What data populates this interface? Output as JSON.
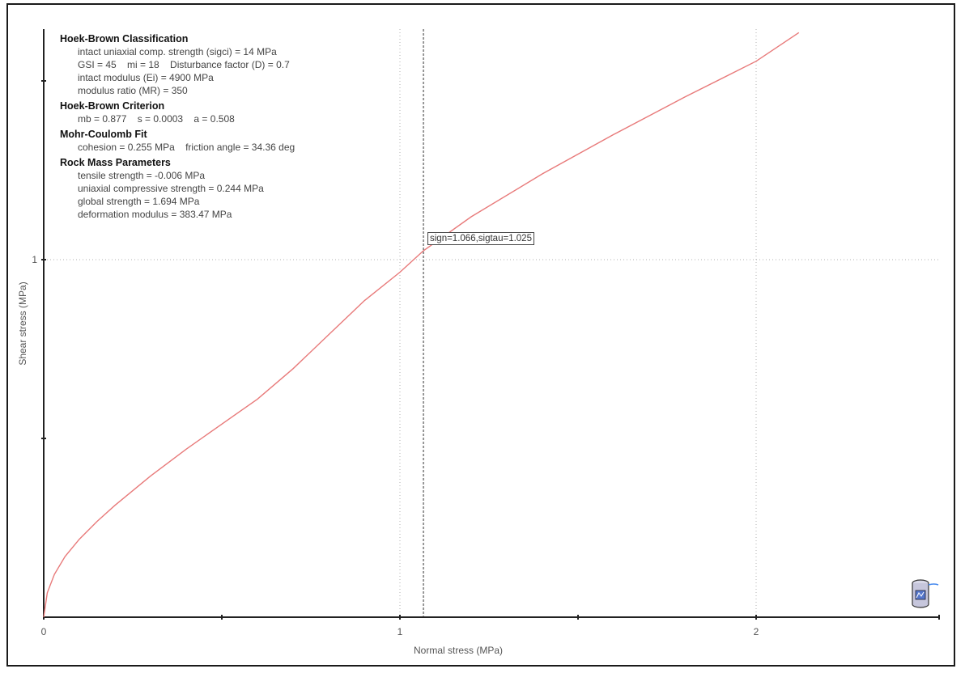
{
  "chart_data": {
    "type": "line",
    "xlabel": "Normal stress (MPa)",
    "ylabel": "Shear stress (MPa)",
    "xlim": [
      0,
      2.5
    ],
    "ylim": [
      0,
      1.65
    ],
    "x_ticks_major": [
      0,
      1,
      2
    ],
    "x_ticks_minor": [
      0.5,
      1.5
    ],
    "y_ticks_major": [
      1
    ],
    "y_ticks_minor": [
      0.5,
      1.5
    ],
    "grid": true,
    "colors": {
      "curve": "#e87a7a",
      "axis": "#222222",
      "grid": "#b0b0b0",
      "cursor": "#333333"
    },
    "series": [
      {
        "points": [
          [
            0,
            0
          ],
          [
            0.01,
            0.068
          ],
          [
            0.03,
            0.12
          ],
          [
            0.06,
            0.17
          ],
          [
            0.1,
            0.218
          ],
          [
            0.15,
            0.268
          ],
          [
            0.2,
            0.313
          ],
          [
            0.3,
            0.395
          ],
          [
            0.4,
            0.47
          ],
          [
            0.5,
            0.54
          ],
          [
            0.6,
            0.61
          ],
          [
            0.7,
            0.695
          ],
          [
            0.8,
            0.79
          ],
          [
            0.9,
            0.885
          ],
          [
            1.0,
            0.965
          ],
          [
            1.066,
            1.025
          ],
          [
            1.2,
            1.12
          ],
          [
            1.4,
            1.24
          ],
          [
            1.6,
            1.35
          ],
          [
            1.8,
            1.455
          ],
          [
            2.0,
            1.555
          ],
          [
            2.12,
            1.635
          ]
        ]
      }
    ],
    "cursor": {
      "sign": 1.066,
      "sigtau": 1.025,
      "label": "sign=1.066,sigtau=1.025"
    }
  },
  "info": {
    "sections": [
      {
        "heading": "Hoek-Brown Classification",
        "lines": [
          "intact uniaxial comp. strength (sigci) = 14 MPa",
          "GSI = 45    mi = 18    Disturbance factor (D) = 0.7",
          "intact modulus (Ei) = 4900 MPa",
          "modulus ratio (MR) = 350"
        ]
      },
      {
        "heading": "Hoek-Brown Criterion",
        "lines": [
          "mb = 0.877    s = 0.0003    a = 0.508"
        ]
      },
      {
        "heading": "Mohr-Coulomb Fit",
        "lines": [
          "cohesion = 0.255 MPa    friction angle = 34.36 deg"
        ]
      },
      {
        "heading": "Rock Mass Parameters",
        "lines": [
          "tensile strength = -0.006 MPa",
          "uniaxial compressive strength = 0.244 MPa",
          "global strength = 1.694 MPa",
          "deformation modulus = 383.47 MPa"
        ]
      }
    ]
  },
  "icons": {
    "corner": "database-cylinder-icon"
  }
}
